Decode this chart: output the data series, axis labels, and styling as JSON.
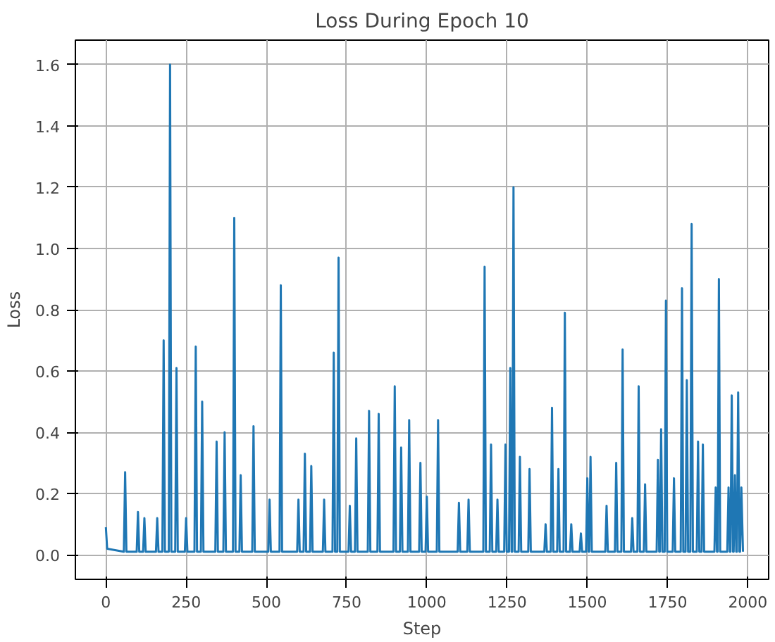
{
  "chart_data": {
    "type": "line",
    "title": "Loss During Epoch 10",
    "xlabel": "Step",
    "ylabel": "Loss",
    "x": [
      0,
      4,
      56,
      60,
      64,
      96,
      100,
      104,
      116,
      120,
      124,
      156,
      160,
      164,
      176,
      180,
      184,
      196,
      200,
      204,
      216,
      220,
      224,
      246,
      250,
      254,
      276,
      280,
      284,
      296,
      300,
      304,
      341,
      345,
      349,
      366,
      370,
      374,
      396,
      400,
      404,
      416,
      420,
      424,
      456,
      460,
      464,
      506,
      510,
      514,
      541,
      545,
      549,
      596,
      600,
      604,
      616,
      620,
      624,
      636,
      640,
      644,
      676,
      680,
      684,
      706,
      710,
      714,
      721,
      725,
      729,
      756,
      760,
      764,
      776,
      780,
      784,
      816,
      820,
      824,
      846,
      850,
      854,
      896,
      900,
      904,
      916,
      920,
      924,
      941,
      945,
      949,
      976,
      980,
      984,
      996,
      1000,
      1004,
      1031,
      1035,
      1039,
      1096,
      1100,
      1104,
      1126,
      1130,
      1134,
      1176,
      1180,
      1184,
      1196,
      1200,
      1204,
      1216,
      1220,
      1224,
      1241,
      1245,
      1249,
      1256,
      1260,
      1264,
      1266,
      1270,
      1274,
      1286,
      1290,
      1294,
      1316,
      1320,
      1324,
      1366,
      1370,
      1374,
      1386,
      1390,
      1394,
      1406,
      1410,
      1414,
      1426,
      1430,
      1434,
      1446,
      1450,
      1454,
      1476,
      1480,
      1484,
      1496,
      1500,
      1504,
      1506,
      1510,
      1514,
      1556,
      1560,
      1564,
      1586,
      1590,
      1594,
      1606,
      1610,
      1614,
      1636,
      1640,
      1644,
      1656,
      1660,
      1664,
      1676,
      1680,
      1684,
      1716,
      1720,
      1724,
      1726,
      1730,
      1734,
      1741,
      1745,
      1749,
      1766,
      1770,
      1774,
      1791,
      1795,
      1799,
      1806,
      1810,
      1814,
      1821,
      1825,
      1829,
      1841,
      1845,
      1849,
      1856,
      1860,
      1864,
      1896,
      1900,
      1904,
      1906,
      1910,
      1914,
      1936,
      1940,
      1944,
      1946,
      1950,
      1954,
      1956,
      1960,
      1964,
      1966,
      1970,
      1974,
      1976,
      1980,
      1985
    ],
    "series": [
      {
        "color": "#1f77b4",
        "values": [
          0.09,
          0.02,
          0.01,
          0.27,
          0.01,
          0.01,
          0.14,
          0.01,
          0.01,
          0.12,
          0.01,
          0.01,
          0.12,
          0.01,
          0.01,
          0.7,
          0.01,
          0.01,
          1.6,
          0.01,
          0.01,
          0.61,
          0.01,
          0.01,
          0.12,
          0.01,
          0.01,
          0.68,
          0.01,
          0.01,
          0.5,
          0.01,
          0.01,
          0.37,
          0.01,
          0.01,
          0.4,
          0.01,
          0.01,
          1.1,
          0.01,
          0.01,
          0.26,
          0.01,
          0.01,
          0.42,
          0.01,
          0.01,
          0.18,
          0.01,
          0.01,
          0.88,
          0.01,
          0.01,
          0.18,
          0.01,
          0.01,
          0.33,
          0.01,
          0.01,
          0.29,
          0.01,
          0.01,
          0.18,
          0.01,
          0.01,
          0.66,
          0.01,
          0.01,
          0.97,
          0.01,
          0.01,
          0.16,
          0.01,
          0.01,
          0.38,
          0.01,
          0.01,
          0.47,
          0.01,
          0.01,
          0.46,
          0.01,
          0.01,
          0.55,
          0.01,
          0.01,
          0.35,
          0.01,
          0.01,
          0.44,
          0.01,
          0.01,
          0.3,
          0.01,
          0.01,
          0.19,
          0.01,
          0.01,
          0.44,
          0.01,
          0.01,
          0.17,
          0.01,
          0.01,
          0.18,
          0.01,
          0.01,
          0.94,
          0.01,
          0.01,
          0.36,
          0.01,
          0.01,
          0.18,
          0.01,
          0.01,
          0.36,
          0.01,
          0.01,
          0.61,
          0.01,
          0.01,
          1.2,
          0.01,
          0.01,
          0.32,
          0.01,
          0.01,
          0.28,
          0.01,
          0.01,
          0.1,
          0.01,
          0.01,
          0.48,
          0.01,
          0.01,
          0.28,
          0.01,
          0.01,
          0.79,
          0.01,
          0.01,
          0.1,
          0.01,
          0.01,
          0.07,
          0.01,
          0.01,
          0.25,
          0.01,
          0.01,
          0.32,
          0.01,
          0.01,
          0.16,
          0.01,
          0.01,
          0.3,
          0.01,
          0.01,
          0.67,
          0.01,
          0.01,
          0.12,
          0.01,
          0.01,
          0.55,
          0.01,
          0.01,
          0.23,
          0.01,
          0.01,
          0.31,
          0.01,
          0.01,
          0.41,
          0.01,
          0.01,
          0.83,
          0.01,
          0.01,
          0.25,
          0.01,
          0.01,
          0.87,
          0.01,
          0.01,
          0.57,
          0.01,
          0.01,
          1.08,
          0.01,
          0.01,
          0.37,
          0.01,
          0.01,
          0.36,
          0.01,
          0.01,
          0.22,
          0.01,
          0.01,
          0.9,
          0.01,
          0.01,
          0.22,
          0.01,
          0.01,
          0.52,
          0.01,
          0.01,
          0.26,
          0.01,
          0.01,
          0.53,
          0.01,
          0.01,
          0.22,
          0.01
        ]
      }
    ],
    "xlim": [
      -95,
      2065
    ],
    "ylim": [
      -0.08,
      1.68
    ],
    "xticks": [
      0,
      250,
      500,
      750,
      1000,
      1250,
      1500,
      1750,
      2000
    ],
    "yticks": [
      {
        "value": 0,
        "label": "0.0"
      },
      0.2,
      0.4,
      0.6,
      0.8,
      {
        "value": 1,
        "label": "1.0"
      },
      1.2,
      1.4,
      1.6
    ],
    "grid": true
  }
}
